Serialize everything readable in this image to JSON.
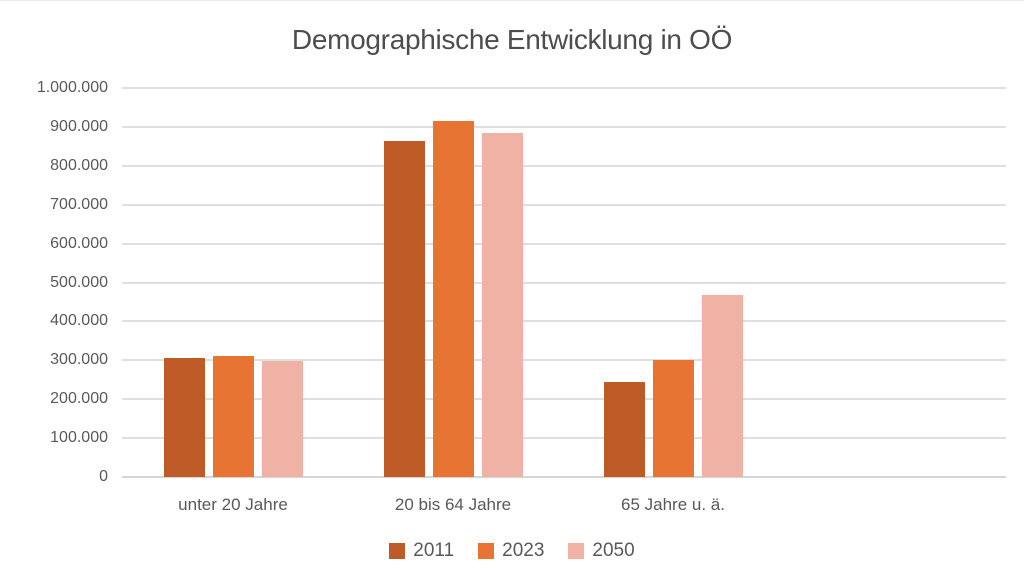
{
  "chart_data": {
    "type": "bar",
    "title": "Demographische Entwicklung in OÖ",
    "categories": [
      "unter 20 Jahre",
      "20 bis 64 Jahre",
      "65 Jahre u. ä."
    ],
    "series": [
      {
        "name": "2011",
        "color": "#BE5B27",
        "values": [
          305000,
          865000,
          245000
        ]
      },
      {
        "name": "2023",
        "color": "#E77433",
        "values": [
          312000,
          916000,
          302000
        ]
      },
      {
        "name": "2050",
        "color": "#F0B2A4",
        "values": [
          297000,
          885000,
          468000
        ]
      }
    ],
    "xlabel": "",
    "ylabel": "",
    "ylim": [
      0,
      1000000
    ],
    "ytick_step": 100000,
    "ytick_labels": [
      "0",
      "100.000",
      "200.000",
      "300.000",
      "400.000",
      "500.000",
      "600.000",
      "700.000",
      "800.000",
      "900.000",
      "1.000.000"
    ],
    "grid": true,
    "legend_position": "bottom",
    "colors": {
      "title_text": "#4D4D4D",
      "axis_text": "#595959",
      "gridline": "#DFDFDF",
      "baseline": "#D5D5D5",
      "background": "#FFFFFF"
    }
  }
}
